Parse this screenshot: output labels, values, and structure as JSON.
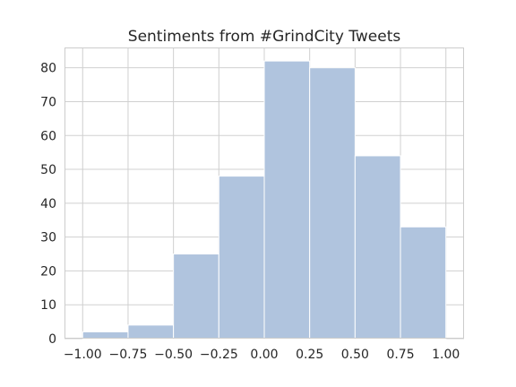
{
  "chart_data": {
    "type": "bar",
    "title": "Sentiments from #GrindCity Tweets",
    "xlabel": "",
    "ylabel": "",
    "bin_edges": [
      -1.0,
      -0.75,
      -0.5,
      -0.25,
      0.0,
      0.25,
      0.5,
      0.75,
      1.0
    ],
    "values": [
      2,
      4,
      25,
      48,
      82,
      80,
      54,
      33
    ],
    "xlim": [
      -1.1,
      1.1
    ],
    "ylim": [
      0,
      86
    ],
    "xticks": [
      -1.0,
      -0.75,
      -0.5,
      -0.25,
      0.0,
      0.25,
      0.5,
      0.75,
      1.0
    ],
    "xtick_labels": [
      "−1.00",
      "−0.75",
      "−0.50",
      "−0.25",
      "0.00",
      "0.25",
      "0.50",
      "0.75",
      "1.00"
    ],
    "yticks": [
      0,
      10,
      20,
      30,
      40,
      50,
      60,
      70,
      80
    ],
    "ytick_labels": [
      "0",
      "10",
      "20",
      "30",
      "40",
      "50",
      "60",
      "70",
      "80"
    ],
    "grid": true,
    "bar_color": "#b0c4de",
    "grid_color": "#d0d0d0"
  }
}
